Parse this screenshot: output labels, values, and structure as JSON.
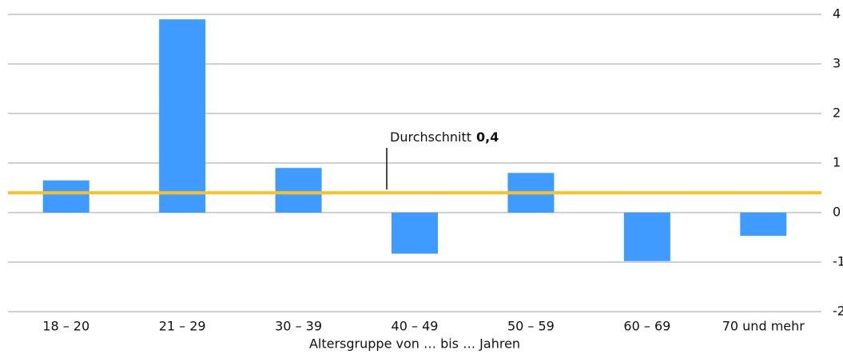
{
  "chart_data": {
    "type": "bar",
    "x_label": "Altersgruppe von … bis … Jahren",
    "categories": [
      "18 – 20",
      "21 – 29",
      "30 – 39",
      "40 – 49",
      "50 – 59",
      "60 – 69",
      "70 und mehr"
    ],
    "values": [
      0.65,
      3.9,
      0.9,
      -0.83,
      0.8,
      -0.98,
      -0.47
    ],
    "color": "#3f9bff",
    "ylim": [
      -2,
      4
    ],
    "yticks": [
      -2,
      -1,
      0,
      1,
      2,
      3,
      4
    ],
    "grid": true,
    "average": {
      "text": "Durchschnitt",
      "value": 0.4,
      "label": "0,4",
      "color": "#f7c12e"
    }
  }
}
